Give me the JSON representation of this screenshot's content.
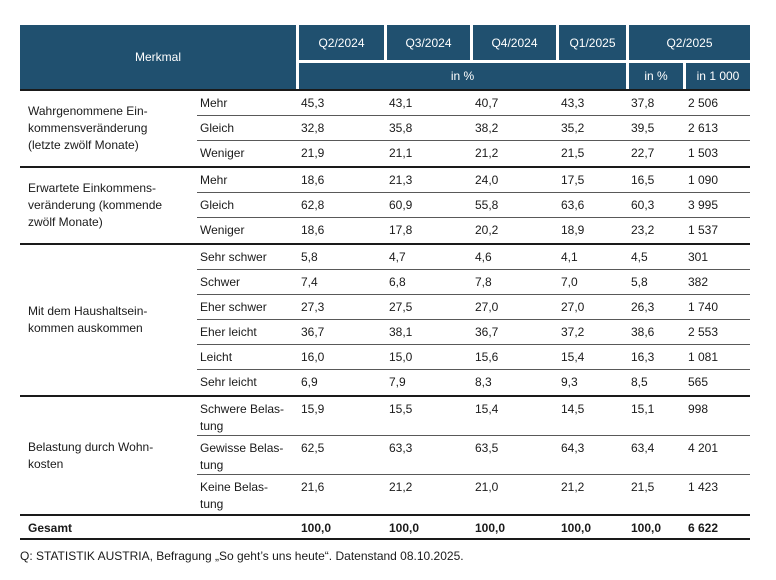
{
  "header": {
    "merkmal_label": "Merkmal",
    "quarter_labels": [
      "Q2/2024",
      "Q3/2024",
      "Q4/2024",
      "Q1/2025",
      "Q2/2025"
    ],
    "percent_span_label": "in %",
    "q2_2025_percent_label": "in %",
    "q2_2025_thousand_label": "in 1 000"
  },
  "groups": [
    {
      "label": "Wahrgenommene Ein-\nkommensveränderung\n(letzte zwölf Monate)",
      "rows": [
        {
          "label": "Mehr",
          "values": [
            "45,3",
            "43,1",
            "40,7",
            "43,3",
            "37,8",
            "2 506"
          ]
        },
        {
          "label": "Gleich",
          "values": [
            "32,8",
            "35,8",
            "38,2",
            "35,2",
            "39,5",
            "2 613"
          ]
        },
        {
          "label": "Weniger",
          "values": [
            "21,9",
            "21,1",
            "21,2",
            "21,5",
            "22,7",
            "1 503"
          ]
        }
      ]
    },
    {
      "label": "Erwartete Einkommens-\nveränderung (kommende\nzwölf Monate)",
      "rows": [
        {
          "label": "Mehr",
          "values": [
            "18,6",
            "21,3",
            "24,0",
            "17,5",
            "16,5",
            "1 090"
          ]
        },
        {
          "label": "Gleich",
          "values": [
            "62,8",
            "60,9",
            "55,8",
            "63,6",
            "60,3",
            "3 995"
          ]
        },
        {
          "label": "Weniger",
          "values": [
            "18,6",
            "17,8",
            "20,2",
            "18,9",
            "23,2",
            "1 537"
          ]
        }
      ]
    },
    {
      "label": "Mit dem Haushaltsein-\nkommen auskommen",
      "rows": [
        {
          "label": "Sehr schwer",
          "values": [
            "5,8",
            "4,7",
            "4,6",
            "4,1",
            "4,5",
            "301"
          ]
        },
        {
          "label": "Schwer",
          "values": [
            "7,4",
            "6,8",
            "7,8",
            "7,0",
            "5,8",
            "382"
          ]
        },
        {
          "label": "Eher schwer",
          "values": [
            "27,3",
            "27,5",
            "27,0",
            "27,0",
            "26,3",
            "1 740"
          ]
        },
        {
          "label": "Eher leicht",
          "values": [
            "36,7",
            "38,1",
            "36,7",
            "37,2",
            "38,6",
            "2 553"
          ]
        },
        {
          "label": "Leicht",
          "values": [
            "16,0",
            "15,0",
            "15,6",
            "15,4",
            "16,3",
            "1 081"
          ]
        },
        {
          "label": "Sehr leicht",
          "values": [
            "6,9",
            "7,9",
            "8,3",
            "9,3",
            "8,5",
            "565"
          ]
        }
      ]
    },
    {
      "label": "Belastung durch Wohn-\nkosten",
      "tall_rows": true,
      "rows": [
        {
          "label": "Schwere Belas-\ntung",
          "values": [
            "15,9",
            "15,5",
            "15,4",
            "14,5",
            "15,1",
            "998"
          ]
        },
        {
          "label": "Gewisse Belas-\ntung",
          "values": [
            "62,5",
            "63,3",
            "63,5",
            "64,3",
            "63,4",
            "4 201"
          ]
        },
        {
          "label": "Keine Belas-\ntung",
          "values": [
            "21,6",
            "21,2",
            "21,0",
            "21,2",
            "21,5",
            "1 423"
          ]
        }
      ]
    }
  ],
  "total": {
    "label": "Gesamt",
    "values": [
      "100,0",
      "100,0",
      "100,0",
      "100,0",
      "100,0",
      "6 622"
    ]
  },
  "source_note": "Q: STATISTIK AUSTRIA, Befragung „So geht’s uns heute“. Datenstand 08.10.2025.",
  "colors": {
    "header_bg": "#20506F",
    "header_text": "#FFFFFF",
    "body_text": "#1A1A1A",
    "thin_line": "#595959",
    "thick_line": "#1A1A1A"
  }
}
